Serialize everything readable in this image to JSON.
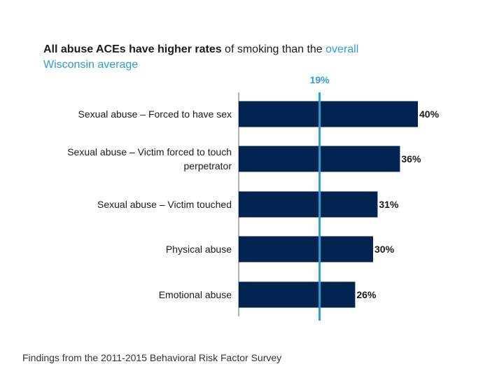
{
  "title": {
    "part1": "All abuse ACEs have higher rates",
    "part2": " of smoking than the ",
    "part3": "overall Wisconsin average"
  },
  "footer": "Findings from the 2011-2015 Behavioral Risk Factor Survey",
  "colors": {
    "bar": "#012350",
    "reference_line": "#2e9bd6",
    "axis": "#9a9a9a"
  },
  "chart_data": {
    "type": "bar",
    "orientation": "horizontal",
    "title": "All abuse ACEs have higher rates of smoking than the overall Wisconsin average",
    "categories": [
      [
        "Sexual abuse – Forced to have sex"
      ],
      [
        "Sexual abuse – Victim forced to touch",
        "perpetrator"
      ],
      [
        "Sexual abuse – Victim touched"
      ],
      [
        "Physical abuse"
      ],
      [
        "Emotional abuse"
      ]
    ],
    "values": [
      40,
      36,
      31,
      30,
      26
    ],
    "value_labels": [
      "40%",
      "36%",
      "31%",
      "30%",
      "26%"
    ],
    "reference": {
      "value": 19,
      "label": "19%"
    },
    "xlim": [
      0,
      45
    ],
    "unit": "%",
    "grid": false,
    "legend": "none"
  }
}
